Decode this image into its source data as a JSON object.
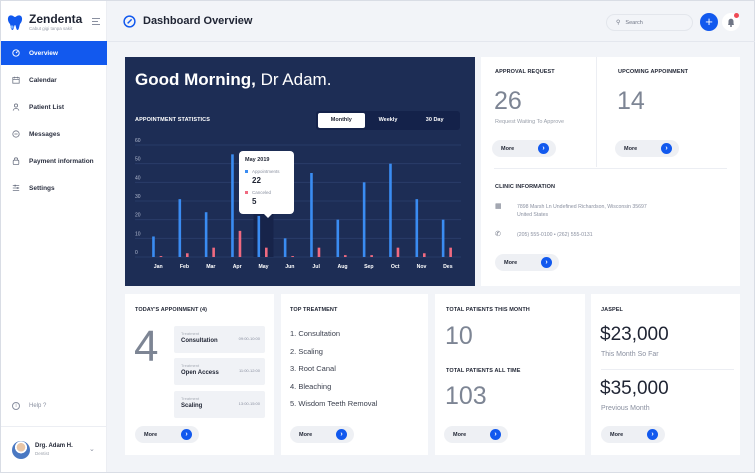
{
  "sidebar": {
    "brand_name": "Zendenta",
    "brand_tagline": "Cabut gigi tanpa sakit",
    "items": [
      {
        "label": "Overview",
        "icon": "gauge-icon",
        "active": true
      },
      {
        "label": "Calendar",
        "icon": "calendar-icon",
        "active": false
      },
      {
        "label": "Patient List",
        "icon": "user-icon",
        "active": false
      },
      {
        "label": "Messages",
        "icon": "chat-icon",
        "active": false
      },
      {
        "label": "Payment information",
        "icon": "wallet-icon",
        "active": false
      },
      {
        "label": "Settings",
        "icon": "settings-icon",
        "active": false
      }
    ],
    "help_label": "Help ?",
    "profile": {
      "name": "Drg. Adam H.",
      "role": "Dentist"
    }
  },
  "header": {
    "title": "Dashboard Overview",
    "search_placeholder": "Search",
    "add_label": "+"
  },
  "hero": {
    "greeting_bold": "Good Morning,",
    "greeting_name": " Dr Adam.",
    "stats_title": "APPOINTMENT STATISTICS",
    "periods": [
      "Monthly",
      "Weekly",
      "30 Day"
    ],
    "active_period": "Monthly",
    "tooltip": {
      "title": "May 2019",
      "appointments_label": "Appointments",
      "appointments_value": "22",
      "cancelled_label": "Canceled",
      "cancelled_value": "5"
    }
  },
  "chart_data": {
    "type": "bar",
    "title": "APPOINTMENT STATISTICS",
    "categories": [
      "Jan",
      "Feb",
      "Mar",
      "Apr",
      "May",
      "Jun",
      "Jul",
      "Aug",
      "Sep",
      "Oct",
      "Nov",
      "Des"
    ],
    "series": [
      {
        "name": "Appointments",
        "color": "#3a8cf2",
        "values": [
          11,
          31,
          24,
          55,
          22,
          10,
          45,
          20,
          40,
          50,
          31,
          20
        ]
      },
      {
        "name": "Canceled",
        "color": "#f06a80",
        "values": [
          0.5,
          2,
          5,
          14,
          5,
          0.5,
          5,
          1,
          1,
          5,
          2,
          5
        ]
      }
    ],
    "y_ticks": [
      0,
      10,
      20,
      30,
      40,
      50,
      60
    ],
    "ylim": [
      0,
      60
    ],
    "grid": true,
    "highlighted_category": "May"
  },
  "approval": {
    "title": "APPROVAL REQUEST",
    "value": "26",
    "caption": "Request Waiting To Approve",
    "more_label": "More"
  },
  "upcoming": {
    "title": "UPCOMING APPOINMENT",
    "value": "14",
    "more_label": "More"
  },
  "clinic": {
    "title": "CLINIC INFORMATION",
    "address_line1": "7898 Marsh Ln Undefined Richardson, Wisconsin 35697",
    "address_line2": "United States",
    "phones": "(205) 555-0100  •  (262) 555-0131",
    "more_label": "More"
  },
  "today": {
    "title": "TODAY'S APPOINMENT (4)",
    "count": "4",
    "items": [
      {
        "label": "Treatment",
        "name": "Consultation",
        "time": "09:00-10:00"
      },
      {
        "label": "Treatment",
        "name": "Open Access",
        "time": "11:00-12:00"
      },
      {
        "label": "Treatment",
        "name": "Scaling",
        "time": "13:00-15:00"
      }
    ],
    "more_label": "More"
  },
  "top_treatment": {
    "title": "TOP TREATMENT",
    "items": [
      "1. Consultation",
      "2. Scaling",
      "3. Root Canal",
      "4. Bleaching",
      "5. Wisdom Teeth Removal"
    ],
    "more_label": "More"
  },
  "patients": {
    "month_title": "TOTAL PATIENTS THIS MONTH",
    "month_value": "10",
    "all_title": "TOTAL PATIENTS ALL TIME",
    "all_value": "103",
    "more_label": "More"
  },
  "jaspel": {
    "title": "JASPEL",
    "this_month_value": "$23,000",
    "this_month_label": "This Month So Far",
    "prev_value": "$35,000",
    "prev_label": "Previous Month",
    "more_label": "More"
  },
  "colors": {
    "accent": "#1259ee",
    "hero_bg": "#1d2d55",
    "appointments": "#3a8cf2",
    "canceled": "#f06a80"
  }
}
